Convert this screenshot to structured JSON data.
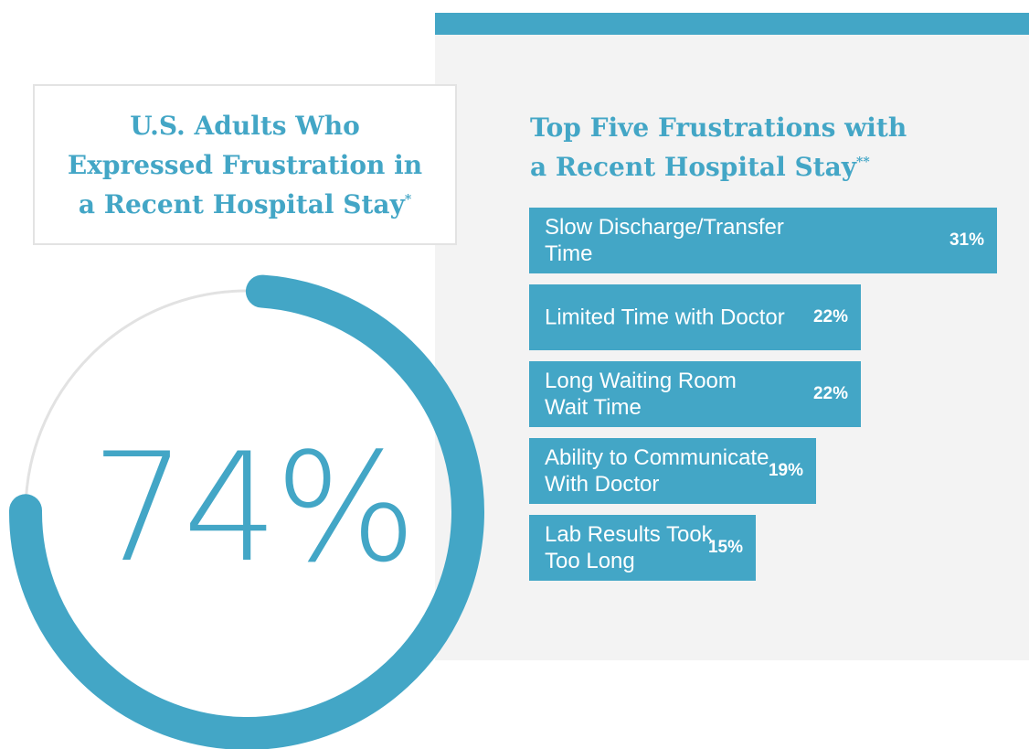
{
  "left_title": {
    "text": "U.S. Adults Who\nExpressed Frustration in\na Recent Hospital Stay",
    "marker": "*"
  },
  "right_title": {
    "text": "Top Five Frustrations with\na Recent Hospital Stay",
    "marker": "**"
  },
  "big_stat": {
    "label": "74%",
    "value": 74
  },
  "colors": {
    "accent": "#43a6c6",
    "ring_track": "#e2e2e2",
    "panel": "#f3f3f3"
  },
  "chart_data": [
    {
      "type": "pie",
      "title": "U.S. Adults Who Expressed Frustration in a Recent Hospital Stay*",
      "values": [
        74
      ],
      "labels": [
        "74%"
      ]
    },
    {
      "type": "bar",
      "orientation": "horizontal",
      "title": "Top Five Frustrations with a Recent Hospital Stay**",
      "categories": [
        "Slow Discharge/Transfer Time",
        "Limited Time with Doctor",
        "Long Waiting Room\nWait Time",
        "Ability to Communicate\nWith Doctor",
        "Lab Results Took\nToo Long"
      ],
      "values": [
        31,
        22,
        22,
        19,
        15
      ],
      "value_labels": [
        "31%",
        "22%",
        "22%",
        "19%",
        "15%"
      ]
    }
  ]
}
